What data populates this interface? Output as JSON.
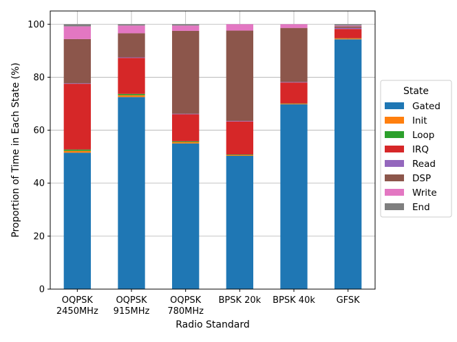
{
  "chart_data": {
    "type": "bar",
    "stacked": true,
    "title": "",
    "xlabel": "Radio Standard",
    "ylabel": "Proportion of Time in Each State (%)",
    "ylim": [
      0,
      105
    ],
    "yticks": [
      0,
      20,
      40,
      60,
      80,
      100
    ],
    "grid": "y",
    "categories": [
      [
        "OQPSK",
        "2450MHz"
      ],
      [
        "OQPSK",
        "915MHz"
      ],
      [
        "OQPSK",
        "780MHz"
      ],
      [
        "BPSK 20k"
      ],
      [
        "BPSK 40k"
      ],
      [
        "GFSK"
      ]
    ],
    "legend": {
      "title": "State",
      "placement": "right"
    },
    "series": [
      {
        "name": "Gated",
        "color": "#1f77b4",
        "values": [
          51.5,
          72.5,
          55.0,
          50.3,
          69.8,
          94.3
        ]
      },
      {
        "name": "Init",
        "color": "#ff7f0e",
        "values": [
          0.7,
          0.7,
          0.5,
          0.3,
          0.2,
          0.3
        ]
      },
      {
        "name": "Loop",
        "color": "#2ca02c",
        "values": [
          0.5,
          0.5,
          0.3,
          0.2,
          0.1,
          0.1
        ]
      },
      {
        "name": "IRQ",
        "color": "#d62728",
        "values": [
          24.8,
          13.6,
          10.2,
          12.5,
          7.9,
          3.5
        ]
      },
      {
        "name": "Read",
        "color": "#9467bd",
        "values": [
          0.2,
          0.2,
          0.2,
          0.2,
          0.2,
          0.4
        ]
      },
      {
        "name": "DSP",
        "color": "#8c564b",
        "values": [
          16.7,
          9.1,
          31.3,
          34.1,
          20.4,
          0.6
        ]
      },
      {
        "name": "Write",
        "color": "#e377c2",
        "values": [
          4.8,
          2.9,
          2.0,
          2.4,
          1.4,
          0.3
        ]
      },
      {
        "name": "End",
        "color": "#7f7f7f",
        "values": [
          0.8,
          0.5,
          0.5,
          0.0,
          0.0,
          0.5
        ]
      }
    ]
  }
}
